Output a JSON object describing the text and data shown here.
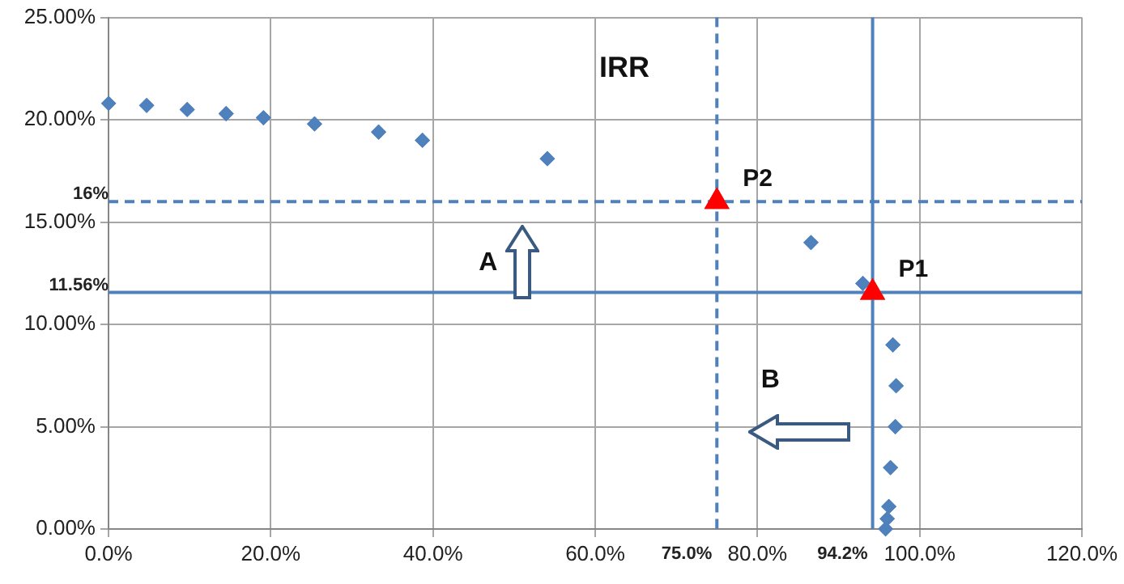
{
  "chart_data": {
    "type": "scatter",
    "xlim": [
      0,
      120
    ],
    "xticks": [
      {
        "value": 0,
        "label": "0.0%"
      },
      {
        "value": 20,
        "label": "20.0%"
      },
      {
        "value": 40,
        "label": "40.0%"
      },
      {
        "value": 60,
        "label": "60.0%"
      },
      {
        "value": 80,
        "label": "80.0%"
      },
      {
        "value": 100,
        "label": "100.0%"
      },
      {
        "value": 120,
        "label": "120.0%"
      }
    ],
    "ylim": [
      0,
      25
    ],
    "yticks": [
      {
        "value": 0,
        "label": "0.00%"
      },
      {
        "value": 5,
        "label": "5.00%"
      },
      {
        "value": 10,
        "label": "10.00%"
      },
      {
        "value": 15,
        "label": "15.00%"
      },
      {
        "value": 20,
        "label": "20.00%"
      },
      {
        "value": 25,
        "label": "25.00%"
      }
    ],
    "grid": true,
    "series": [
      {
        "color": "#4f81bd",
        "marker": "diamond",
        "x": [
          0,
          4.7,
          9.7,
          14.5,
          19.1,
          25.4,
          33.3,
          38.7,
          54.1,
          86.6,
          93.0,
          96.7,
          97.1,
          97.0,
          96.4,
          96.2,
          96.0,
          95.8
        ],
        "values": [
          20.8,
          20.7,
          20.5,
          20.3,
          20.1,
          19.8,
          19.4,
          19.0,
          18.1,
          14.0,
          12.0,
          9.0,
          7.0,
          5.0,
          3.0,
          1.1,
          0.5,
          0
        ]
      },
      {
        "color": "#ff0000",
        "marker": "triangle",
        "x": [
          75,
          94.2
        ],
        "values": [
          16,
          11.56
        ]
      }
    ],
    "ref_lines": [
      {
        "axis": "y",
        "value": 16,
        "label": "16%",
        "line_style": "dashed",
        "color": "#4f81bd"
      },
      {
        "axis": "x",
        "value": 75,
        "label": "75.0%",
        "line_style": "dashed",
        "color": "#4f81bd"
      },
      {
        "axis": "y",
        "value": 11.56,
        "label": "11.56%",
        "line_style": "solid",
        "color": "#4f81bd"
      },
      {
        "axis": "x",
        "value": 94.2,
        "label": "94.2%",
        "line_style": "solid",
        "color": "#4f81bd"
      }
    ],
    "annotations": [
      "IRR",
      "A",
      "B",
      {
        "text": "P2",
        "x": 75,
        "y": 16
      },
      {
        "text": "P1",
        "x": 94.2,
        "y": 11.56
      }
    ]
  }
}
